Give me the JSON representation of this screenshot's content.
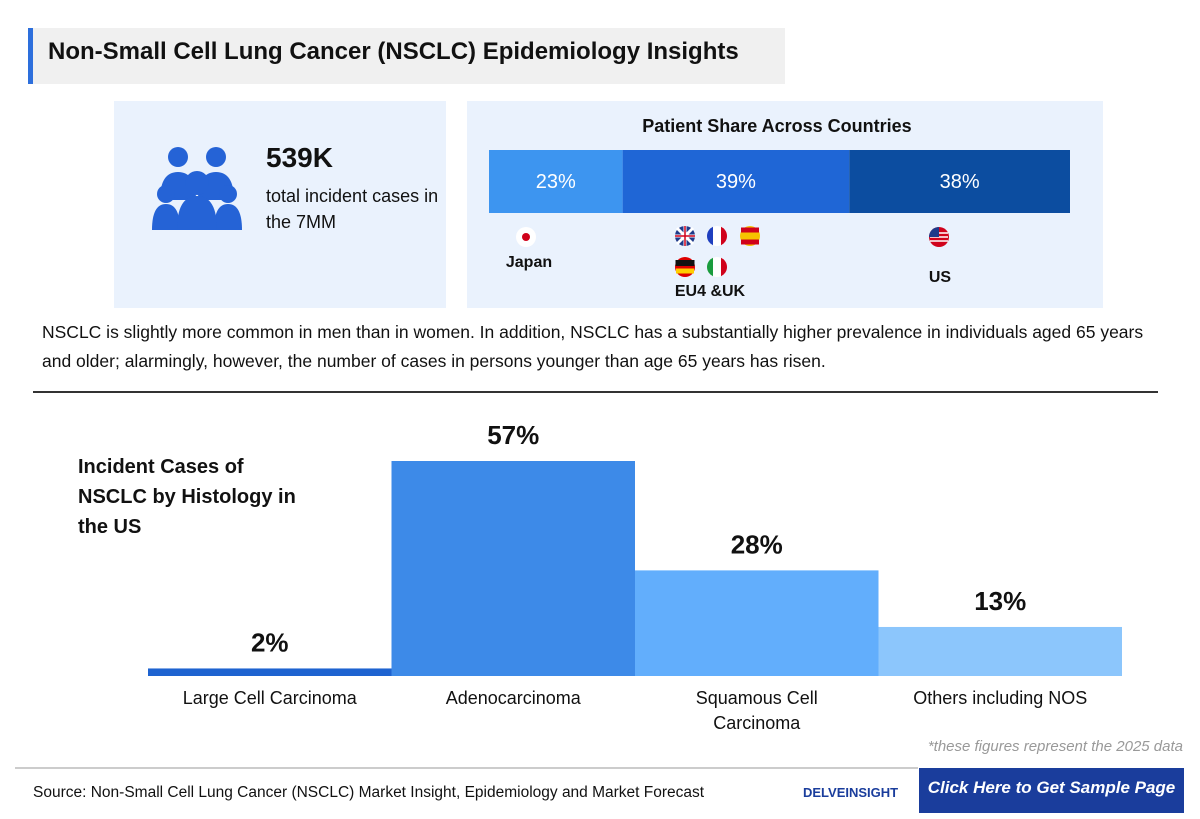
{
  "header": {
    "title": "Non-Small Cell Lung Cancer (NSCLC) Epidemiology Insights"
  },
  "stat": {
    "value": "539K",
    "text": "total incident cases in the 7MM"
  },
  "chart_data": [
    {
      "type": "stacked-bar",
      "title": "Patient Share Across Countries",
      "categories": [
        "Japan",
        "EU4 &UK",
        "US"
      ],
      "values": [
        23,
        39,
        38
      ],
      "value_labels": [
        "23%",
        "39%",
        "38%"
      ],
      "colors": [
        "#3d95f0",
        "#1f66d6",
        "#0c4da0"
      ]
    },
    {
      "type": "bar",
      "title": "Incident Cases of NSCLC by Histology in the US",
      "categories": [
        "Large Cell Carcinoma",
        "Adenocarcinoma",
        "Squamous Cell Carcinoma",
        "Others including NOS"
      ],
      "values": [
        2,
        57,
        28,
        13
      ],
      "value_labels": [
        "2%",
        "57%",
        "28%",
        "13%"
      ],
      "colors": [
        "#1e63d0",
        "#3d8ae8",
        "#62aefc",
        "#8cc6fc"
      ]
    }
  ],
  "paragraph": "NSCLC is slightly more common in men than in women. In addition, NSCLC has a substantially higher prevalence in individuals aged 65 years and older; alarmingly, however, the number of cases in persons younger than age 65 years has risen.",
  "footnote": "*these figures represent the 2025 data",
  "source": "Source: Non-Small Cell Lung Cancer (NSCLC) Market Insight, Epidemiology and Market Forecast",
  "logo": "DELVEINSIGHT",
  "button": "Click Here to Get Sample Page"
}
